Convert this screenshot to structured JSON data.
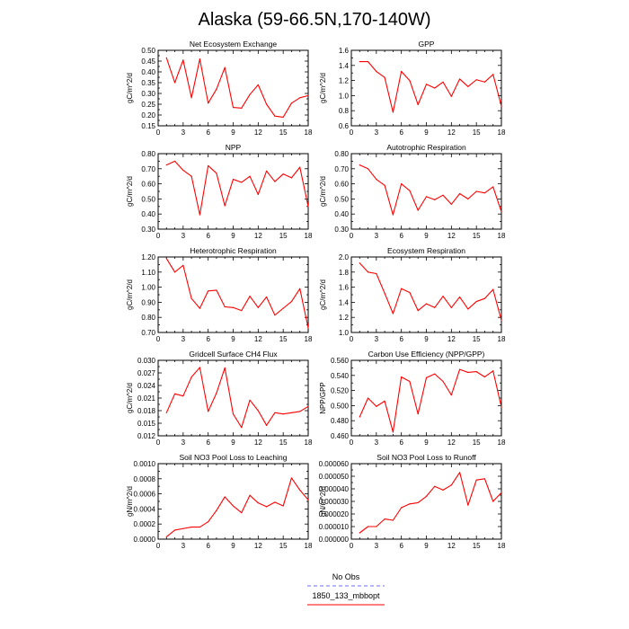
{
  "figure": {
    "title": "Alaska (59-66.5N,170-140W)",
    "legend": [
      {
        "label": "No Obs",
        "color": "#8a8aff",
        "dashed": true
      },
      {
        "label": "1850_133_mbbopt",
        "color": "#ff3030",
        "dashed": false
      }
    ]
  },
  "chart_data": [
    {
      "type": "line",
      "title": "Net Ecosystem Exchange",
      "ylabel": "gC/m^2/d",
      "xlim": [
        0,
        18
      ],
      "ylim": [
        0.15,
        0.5
      ],
      "xticks": [
        0,
        3,
        6,
        9,
        12,
        15,
        18
      ],
      "yticks": [
        "0.15",
        "0.20",
        "0.25",
        "0.30",
        "0.35",
        "0.40",
        "0.45",
        "0.50"
      ],
      "series": [
        {
          "color": "#ff0000",
          "x": [
            1,
            2,
            3,
            4,
            5,
            6,
            7,
            8,
            9,
            10,
            11,
            12,
            13,
            14,
            15,
            16,
            17,
            18
          ],
          "values": [
            0.465,
            0.35,
            0.455,
            0.28,
            0.46,
            0.255,
            0.32,
            0.42,
            0.235,
            0.232,
            0.295,
            0.34,
            0.25,
            0.195,
            0.19,
            0.255,
            0.28,
            0.29
          ]
        }
      ]
    },
    {
      "type": "line",
      "title": "GPP",
      "ylabel": "gC/m^2/d",
      "xlim": [
        0,
        18
      ],
      "ylim": [
        0.6,
        1.6
      ],
      "xticks": [
        0,
        3,
        6,
        9,
        12,
        15,
        18
      ],
      "yticks": [
        "0.6",
        "0.8",
        "1.0",
        "1.2",
        "1.4",
        "1.6"
      ],
      "series": [
        {
          "color": "#ff0000",
          "x": [
            1,
            2,
            3,
            4,
            5,
            6,
            7,
            8,
            9,
            10,
            11,
            12,
            13,
            14,
            15,
            16,
            17,
            18
          ],
          "values": [
            1.45,
            1.45,
            1.32,
            1.24,
            0.78,
            1.32,
            1.2,
            0.88,
            1.15,
            1.1,
            1.18,
            0.99,
            1.22,
            1.12,
            1.21,
            1.18,
            1.28,
            0.86
          ]
        }
      ]
    },
    {
      "type": "line",
      "title": "NPP",
      "ylabel": "gC/m^2/d",
      "xlim": [
        0,
        18
      ],
      "ylim": [
        0.3,
        0.8
      ],
      "xticks": [
        0,
        3,
        6,
        9,
        12,
        15,
        18
      ],
      "yticks": [
        "0.30",
        "0.40",
        "0.50",
        "0.60",
        "0.70",
        "0.80"
      ],
      "series": [
        {
          "color": "#ff0000",
          "x": [
            1,
            2,
            3,
            4,
            5,
            6,
            7,
            8,
            9,
            10,
            11,
            12,
            13,
            14,
            15,
            16,
            17,
            18
          ],
          "values": [
            0.725,
            0.75,
            0.69,
            0.65,
            0.395,
            0.72,
            0.67,
            0.455,
            0.63,
            0.61,
            0.65,
            0.53,
            0.685,
            0.615,
            0.665,
            0.64,
            0.71,
            0.45
          ]
        }
      ]
    },
    {
      "type": "line",
      "title": "Autotrophic Respiration",
      "ylabel": "gC/m^2/d",
      "xlim": [
        0,
        18
      ],
      "ylim": [
        0.3,
        0.8
      ],
      "xticks": [
        0,
        3,
        6,
        9,
        12,
        15,
        18
      ],
      "yticks": [
        "0.30",
        "0.40",
        "0.50",
        "0.60",
        "0.70",
        "0.80"
      ],
      "series": [
        {
          "color": "#ff0000",
          "x": [
            1,
            2,
            3,
            4,
            5,
            6,
            7,
            8,
            9,
            10,
            11,
            12,
            13,
            14,
            15,
            16,
            17,
            18
          ],
          "values": [
            0.725,
            0.7,
            0.63,
            0.59,
            0.395,
            0.6,
            0.555,
            0.425,
            0.515,
            0.495,
            0.525,
            0.465,
            0.535,
            0.5,
            0.55,
            0.54,
            0.58,
            0.415
          ]
        }
      ]
    },
    {
      "type": "line",
      "title": "Heterotrophic Respiration",
      "ylabel": "gC/m^2/d",
      "xlim": [
        0,
        18
      ],
      "ylim": [
        0.7,
        1.2
      ],
      "xticks": [
        0,
        3,
        6,
        9,
        12,
        15,
        18
      ],
      "yticks": [
        "0.70",
        "0.80",
        "0.90",
        "1.00",
        "1.10",
        "1.20"
      ],
      "series": [
        {
          "color": "#ff0000",
          "x": [
            1,
            2,
            3,
            4,
            5,
            6,
            7,
            8,
            9,
            10,
            11,
            12,
            13,
            14,
            15,
            16,
            17,
            18
          ],
          "values": [
            1.19,
            1.1,
            1.145,
            0.925,
            0.86,
            0.975,
            0.98,
            0.87,
            0.865,
            0.845,
            0.94,
            0.865,
            0.935,
            0.815,
            0.86,
            0.905,
            0.99,
            0.73
          ]
        }
      ]
    },
    {
      "type": "line",
      "title": "Ecosystem Respiration",
      "ylabel": "gC/m^2/d",
      "xlim": [
        0,
        18
      ],
      "ylim": [
        1.0,
        2.0
      ],
      "xticks": [
        0,
        3,
        6,
        9,
        12,
        15,
        18
      ],
      "yticks": [
        "1.0",
        "1.2",
        "1.4",
        "1.6",
        "1.8",
        "2.0"
      ],
      "series": [
        {
          "color": "#ff0000",
          "x": [
            1,
            2,
            3,
            4,
            5,
            6,
            7,
            8,
            9,
            10,
            11,
            12,
            13,
            14,
            15,
            16,
            17,
            18
          ],
          "values": [
            1.92,
            1.8,
            1.78,
            1.52,
            1.25,
            1.58,
            1.53,
            1.29,
            1.38,
            1.33,
            1.48,
            1.33,
            1.47,
            1.31,
            1.41,
            1.45,
            1.57,
            1.16
          ]
        }
      ]
    },
    {
      "type": "line",
      "title": "Gridcell Surface CH4 Flux",
      "ylabel": "gC/m^2/d",
      "xlim": [
        0,
        18
      ],
      "ylim": [
        0.012,
        0.03
      ],
      "xticks": [
        0,
        3,
        6,
        9,
        12,
        15,
        18
      ],
      "yticks": [
        "0.012",
        "0.015",
        "0.018",
        "0.021",
        "0.024",
        "0.027",
        "0.030"
      ],
      "series": [
        {
          "color": "#ff0000",
          "x": [
            1,
            2,
            3,
            4,
            5,
            6,
            7,
            8,
            9,
            10,
            11,
            12,
            13,
            14,
            15,
            16,
            17,
            18
          ],
          "values": [
            0.0175,
            0.022,
            0.0215,
            0.026,
            0.0283,
            0.0178,
            0.0222,
            0.0282,
            0.0172,
            0.014,
            0.0205,
            0.018,
            0.0145,
            0.0175,
            0.0172,
            0.0175,
            0.0178,
            0.019
          ]
        }
      ]
    },
    {
      "type": "line",
      "title": "Carbon Use Efficiency (NPP/GPP)",
      "ylabel": "NPP/GPP",
      "xlim": [
        0,
        18
      ],
      "ylim": [
        0.46,
        0.56
      ],
      "xticks": [
        0,
        3,
        6,
        9,
        12,
        15,
        18
      ],
      "yticks": [
        "0.460",
        "0.480",
        "0.500",
        "0.520",
        "0.540",
        "0.560"
      ],
      "series": [
        {
          "color": "#ff0000",
          "x": [
            1,
            2,
            3,
            4,
            5,
            6,
            7,
            8,
            9,
            10,
            11,
            12,
            13,
            14,
            15,
            16,
            17,
            18
          ],
          "values": [
            0.485,
            0.51,
            0.499,
            0.506,
            0.465,
            0.538,
            0.532,
            0.489,
            0.537,
            0.542,
            0.532,
            0.514,
            0.548,
            0.544,
            0.545,
            0.538,
            0.546,
            0.498
          ]
        }
      ]
    },
    {
      "type": "line",
      "title": "Soil NO3 Pool Loss to Leaching",
      "ylabel": "gN/m^2/d",
      "xlim": [
        0,
        18
      ],
      "ylim": [
        0.0,
        0.001
      ],
      "xticks": [
        0,
        3,
        6,
        9,
        12,
        15,
        18
      ],
      "yticks": [
        "0.0000",
        "0.0002",
        "0.0004",
        "0.0006",
        "0.0008",
        "0.0010"
      ],
      "series": [
        {
          "color": "#ff0000",
          "x": [
            1,
            2,
            3,
            4,
            5,
            6,
            7,
            8,
            9,
            10,
            11,
            12,
            13,
            14,
            15,
            16,
            17,
            18
          ],
          "values": [
            3e-05,
            0.00012,
            0.00014,
            0.00016,
            0.00016,
            0.00023,
            0.00038,
            0.00056,
            0.00044,
            0.00035,
            0.00058,
            0.00048,
            0.00043,
            0.00049,
            0.00044,
            0.00081,
            0.00065,
            0.00052
          ]
        }
      ]
    },
    {
      "type": "line",
      "title": "Soil NO3 Pool Loss to Runoff",
      "ylabel": "gN/m^2/d",
      "xlim": [
        0,
        18
      ],
      "ylim": [
        0.0,
        6e-05
      ],
      "xticks": [
        0,
        3,
        6,
        9,
        12,
        15,
        18
      ],
      "yticks": [
        "0.000000",
        "0.000010",
        "0.000020",
        "0.000030",
        "0.000040",
        "0.000050",
        "0.000060"
      ],
      "series": [
        {
          "color": "#ff0000",
          "x": [
            1,
            2,
            3,
            4,
            5,
            6,
            7,
            8,
            9,
            10,
            11,
            12,
            13,
            14,
            15,
            16,
            17,
            18
          ],
          "values": [
            5e-06,
            1e-05,
            1e-05,
            1.6e-05,
            1.5e-05,
            2.5e-05,
            2.8e-05,
            2.9e-05,
            3.4e-05,
            4.2e-05,
            3.9e-05,
            4.3e-05,
            5.3e-05,
            2.7e-05,
            4.7e-05,
            4.8e-05,
            3e-05,
            3.7e-05
          ]
        }
      ]
    }
  ]
}
